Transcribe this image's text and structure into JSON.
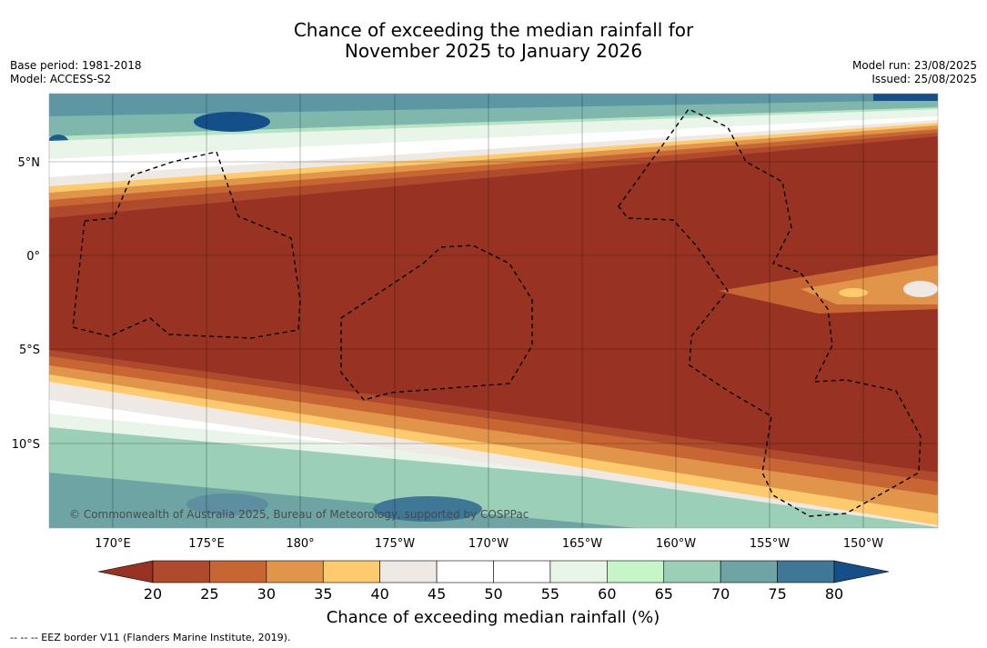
{
  "title_line1": "Chance of exceeding the median rainfall for",
  "title_line2": "November 2025 to January 2026",
  "meta_left": {
    "base_period": "Base period: 1981-2018",
    "model": "Model: ACCESS-S2"
  },
  "meta_right": {
    "model_run": "Model run: 23/08/2025",
    "issued": "Issued: 25/08/2025"
  },
  "lat_labels": [
    "5°N",
    "0°",
    "5°S",
    "10°S"
  ],
  "lon_labels": [
    "170°E",
    "175°E",
    "180°",
    "175°W",
    "170°W",
    "165°W",
    "160°W",
    "155°W",
    "150°W"
  ],
  "copyright": "© Commonwealth of Australia 2025, Bureau of Meteorology, supported by COSPPac",
  "colorbar": {
    "title": "Chance of exceeding median rainfall (%)",
    "ticks": [
      "20",
      "25",
      "30",
      "35",
      "40",
      "45",
      "50",
      "55",
      "60",
      "65",
      "70",
      "75",
      "80"
    ],
    "colors": [
      "#983323",
      "#b04a2c",
      "#c86633",
      "#e0954a",
      "#fdcb6e",
      "#efe9e5",
      "#ffffff",
      "#ffffff",
      "#e8f5e8",
      "#c6f6c8",
      "#9bcfb7",
      "#6ea4a4",
      "#3f7896",
      "#154f8a"
    ]
  },
  "footnote": "--  --  -- EEZ border V11 (Flanders Marine Institute, 2019)."
}
